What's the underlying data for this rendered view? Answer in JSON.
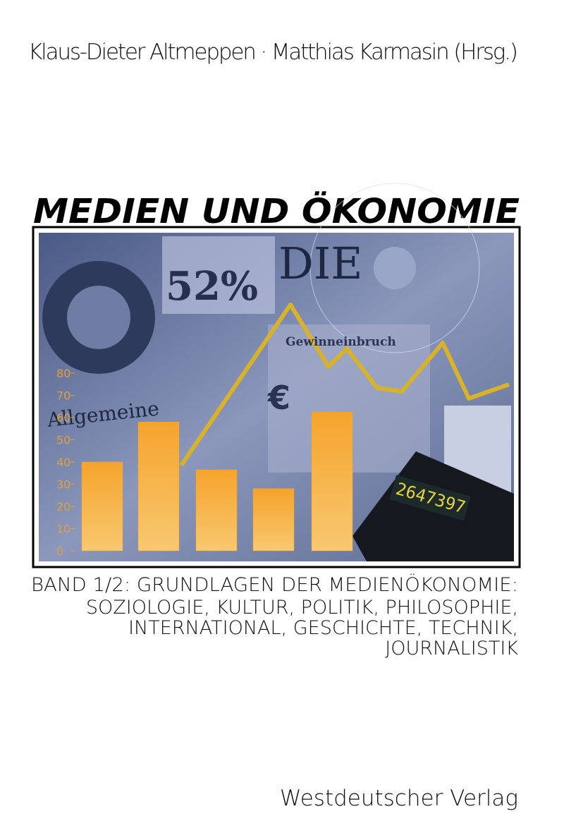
{
  "header": {
    "editors": "Klaus-Dieter Altmeppen · Matthias Karmasin (Hrsg.)",
    "title": "MEDIEN UND ÖKONOMIE"
  },
  "cover_image": {
    "texts": [
      "52%",
      "DIE",
      "Gewinneinbruch",
      "Allgemeine",
      "€",
      "2647397"
    ],
    "chart": {
      "type": "bar",
      "values": [
        40,
        58,
        36.5,
        28,
        62.5
      ],
      "color": "#f0a030",
      "ylim": [
        0,
        80
      ],
      "yticks": [
        0,
        10,
        20,
        30,
        40,
        50,
        60,
        70,
        80
      ]
    }
  },
  "subtitle": [
    "BAND 1/2: GRUNDLAGEN DER MEDIENÖKONOMIE:",
    "SOZIOLOGIE, KULTUR, POLITIK, PHILOSOPHIE,",
    "INTERNATIONAL, GESCHICHTE, TECHNIK,",
    "JOURNALISTIK"
  ],
  "publisher": "Westdeutscher Verlag"
}
